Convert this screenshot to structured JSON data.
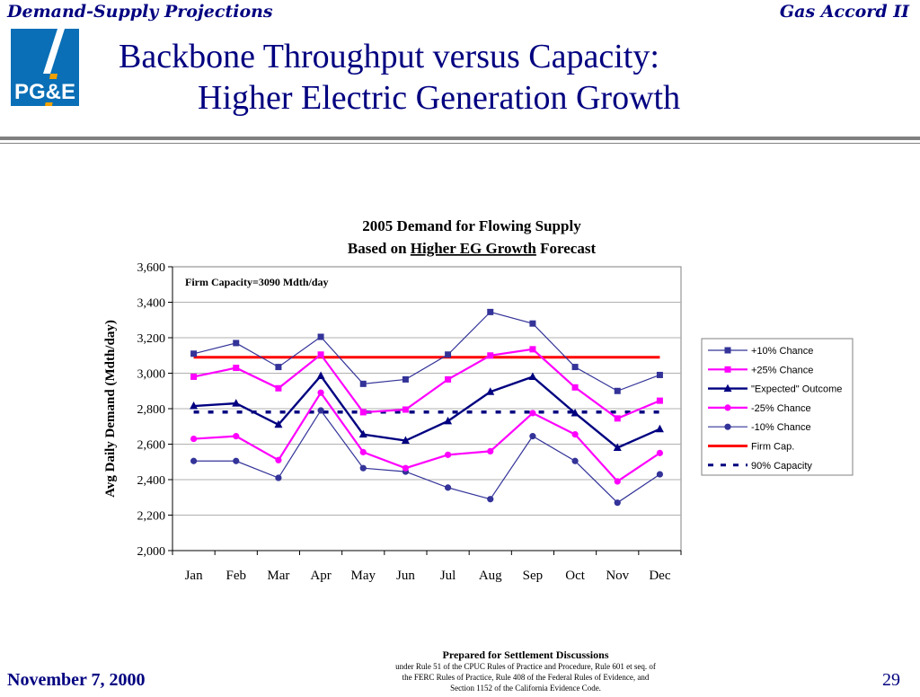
{
  "header": {
    "left": "Demand-Supply Projections",
    "right": "Gas Accord II"
  },
  "logo": {
    "text": "PG&E"
  },
  "slide_title": {
    "line1": "Backbone Throughput versus Capacity:",
    "line2": "Higher Electric Generation Growth"
  },
  "chart_data": {
    "type": "line",
    "title_line1": "2005 Demand for Flowing Supply",
    "title_line2_prefix": "Based on",
    "title_line2_emph": "Higher EG Growth",
    "title_line2_suffix": "Forecast",
    "ylabel": "Avg Daily Demand (Mdth/day)",
    "xlabel": "",
    "ylim": [
      2000,
      3600
    ],
    "yticks": [
      "2,000",
      "2,200",
      "2,400",
      "2,600",
      "2,800",
      "3,000",
      "3,200",
      "3,400",
      "3,600"
    ],
    "ytick_values": [
      2000,
      2200,
      2400,
      2600,
      2800,
      3000,
      3200,
      3400,
      3600
    ],
    "categories": [
      "Jan",
      "Feb",
      "Mar",
      "Apr",
      "May",
      "Jun",
      "Jul",
      "Aug",
      "Sep",
      "Oct",
      "Nov",
      "Dec"
    ],
    "grid": true,
    "legend_position": "right",
    "annotation": "Firm Capacity=3090 Mdth/day",
    "series": [
      {
        "name": "+10% Chance",
        "color": "#333399",
        "marker": "square",
        "dash": "none",
        "width": 1.2,
        "values": [
          3110,
          3170,
          3035,
          3205,
          2940,
          2965,
          3105,
          3345,
          3280,
          3035,
          2900,
          2990
        ]
      },
      {
        "name": "+25% Chance",
        "color": "#ff00ff",
        "marker": "square",
        "dash": "none",
        "width": 2.2,
        "values": [
          2980,
          3030,
          2915,
          3105,
          2780,
          2795,
          2965,
          3100,
          3135,
          2920,
          2745,
          2845
        ]
      },
      {
        "name": "\"Expected\" Outcome",
        "color": "#000080",
        "marker": "triangle",
        "dash": "none",
        "width": 2.4,
        "values": [
          2815,
          2830,
          2710,
          2985,
          2655,
          2620,
          2730,
          2895,
          2980,
          2775,
          2580,
          2685
        ]
      },
      {
        "name": "-25% Chance",
        "color": "#ff00ff",
        "marker": "circle",
        "dash": "none",
        "width": 2.2,
        "values": [
          2630,
          2645,
          2510,
          2890,
          2555,
          2465,
          2540,
          2560,
          2775,
          2655,
          2390,
          2550
        ]
      },
      {
        "name": "-10% Chance",
        "color": "#333399",
        "marker": "circle",
        "dash": "none",
        "width": 1.2,
        "values": [
          2505,
          2505,
          2410,
          2790,
          2465,
          2445,
          2355,
          2290,
          2645,
          2505,
          2270,
          2430
        ]
      },
      {
        "name": "Firm Cap.",
        "color": "#ff0000",
        "marker": "none",
        "dash": "none",
        "width": 3,
        "values": [
          3090,
          3090,
          3090,
          3090,
          3090,
          3090,
          3090,
          3090,
          3090,
          3090,
          3090,
          3090
        ]
      },
      {
        "name": "90% Capacity",
        "color": "#000080",
        "marker": "none",
        "dash": "6,10",
        "width": 3.5,
        "values": [
          2781,
          2781,
          2781,
          2781,
          2781,
          2781,
          2781,
          2781,
          2781,
          2781,
          2781,
          2781
        ]
      }
    ]
  },
  "footer": {
    "date": "November 7, 2000",
    "page": "29",
    "notice_title": "Prepared for Settlement Discussions",
    "notice_line1": "under Rule 51 of the CPUC Rules of Practice and Procedure, Rule 601 et seq. of",
    "notice_line2": "the FERC Rules of Practice, Rule 408 of the Federal Rules of Evidence, and",
    "notice_line3": "Section 1152 of the California Evidence Code."
  }
}
